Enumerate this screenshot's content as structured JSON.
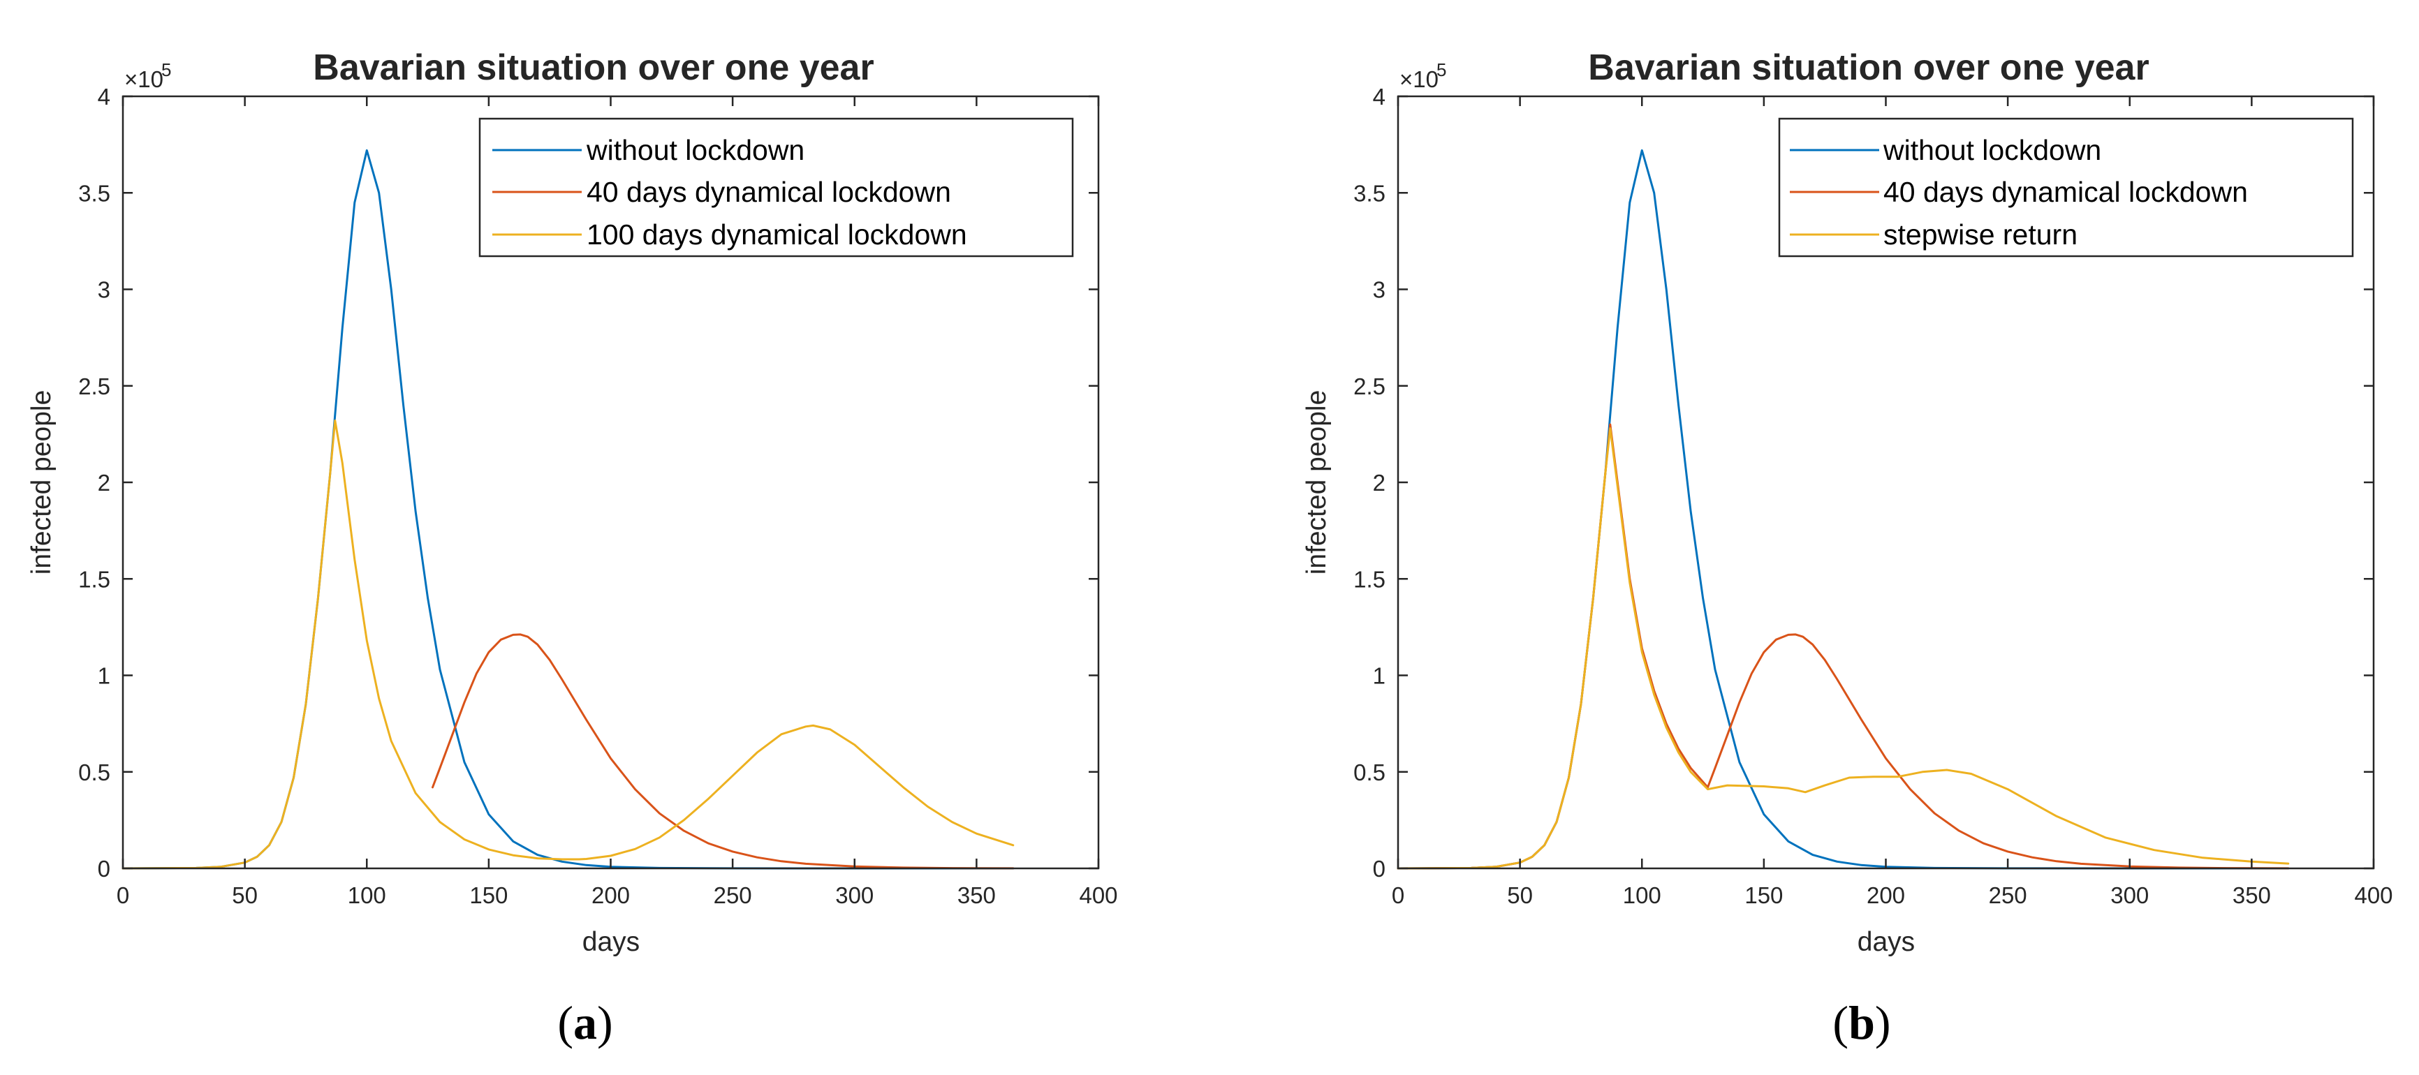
{
  "figure": {
    "exponent_label": "×10",
    "exponent_power": "5"
  },
  "colors": {
    "without": "#0072BD",
    "dyn40": "#D95319",
    "third": "#EDB120",
    "axis": "#262626"
  },
  "chart_data": [
    {
      "type": "line",
      "title": "Bavarian situation over one year",
      "xlabel": "days",
      "ylabel": "infected people",
      "xlim": [
        0,
        400
      ],
      "ylim": [
        0,
        400000
      ],
      "xticks": [
        0,
        50,
        100,
        150,
        200,
        250,
        300,
        350,
        400
      ],
      "yticks": [
        0,
        0.5,
        1,
        1.5,
        2,
        2.5,
        3,
        3.5,
        4
      ],
      "ytick_scale": 100000,
      "legend_position": "top-right",
      "caption_letter": "a",
      "series": [
        {
          "name": "without lockdown",
          "color": "#0072BD",
          "x": [
            0,
            30,
            40,
            50,
            55,
            60,
            65,
            70,
            75,
            80,
            85,
            87,
            90,
            95,
            100,
            105,
            110,
            115,
            120,
            125,
            130,
            140,
            150,
            160,
            170,
            180,
            190,
            200,
            220,
            250,
            300,
            365
          ],
          "y": [
            0,
            200,
            800,
            3000,
            6000,
            12000,
            24000,
            47000,
            85000,
            140000,
            205000,
            235000,
            280000,
            345000,
            372000,
            350000,
            300000,
            240000,
            185000,
            140000,
            103000,
            55000,
            28000,
            14000,
            7000,
            3500,
            1700,
            800,
            200,
            50,
            0,
            0
          ]
        },
        {
          "name": "40 days dynamical lockdown",
          "color": "#D95319",
          "x": [
            127,
            130,
            135,
            140,
            145,
            150,
            155,
            160,
            163,
            166,
            170,
            175,
            180,
            190,
            200,
            210,
            220,
            230,
            240,
            250,
            260,
            270,
            280,
            300,
            320,
            340,
            365
          ],
          "y": [
            42000,
            52000,
            69000,
            86000,
            101000,
            112000,
            118500,
            121000,
            121200,
            120000,
            116000,
            108000,
            98000,
            77000,
            57000,
            41000,
            28500,
            19500,
            13000,
            8700,
            5700,
            3700,
            2400,
            1000,
            400,
            150,
            50
          ]
        },
        {
          "name": "100 days dynamical lockdown",
          "color": "#EDB120",
          "x": [
            0,
            30,
            40,
            50,
            55,
            60,
            65,
            70,
            75,
            80,
            85,
            87,
            90,
            95,
            100,
            105,
            110,
            120,
            130,
            140,
            150,
            160,
            170,
            180,
            187,
            190,
            200,
            210,
            220,
            230,
            240,
            250,
            260,
            270,
            280,
            283,
            290,
            300,
            310,
            320,
            330,
            340,
            350,
            365
          ],
          "y": [
            0,
            200,
            800,
            3000,
            6000,
            12000,
            24000,
            47000,
            85000,
            140000,
            205000,
            232000,
            210000,
            160000,
            118000,
            88000,
            66000,
            39000,
            24000,
            15000,
            9800,
            6800,
            5200,
            4700,
            4700,
            4900,
            6500,
            10000,
            16000,
            25000,
            36000,
            48000,
            60000,
            69500,
            73500,
            74000,
            72000,
            64000,
            53000,
            42000,
            32000,
            24000,
            18000,
            12000
          ]
        }
      ]
    },
    {
      "type": "line",
      "title": "Bavarian situation over one year",
      "xlabel": "days",
      "ylabel": "infected people",
      "xlim": [
        0,
        400
      ],
      "ylim": [
        0,
        400000
      ],
      "xticks": [
        0,
        50,
        100,
        150,
        200,
        250,
        300,
        350,
        400
      ],
      "yticks": [
        0,
        0.5,
        1,
        1.5,
        2,
        2.5,
        3,
        3.5,
        4
      ],
      "ytick_scale": 100000,
      "legend_position": "top-right",
      "caption_letter": "b",
      "series": [
        {
          "name": "without lockdown",
          "color": "#0072BD",
          "x": [
            0,
            30,
            40,
            50,
            55,
            60,
            65,
            70,
            75,
            80,
            85,
            87,
            90,
            95,
            100,
            105,
            110,
            115,
            120,
            125,
            130,
            140,
            150,
            160,
            170,
            180,
            190,
            200,
            220,
            250,
            300,
            365
          ],
          "y": [
            0,
            200,
            800,
            3000,
            6000,
            12000,
            24000,
            47000,
            85000,
            140000,
            205000,
            235000,
            280000,
            345000,
            372000,
            350000,
            300000,
            240000,
            185000,
            140000,
            103000,
            55000,
            28000,
            14000,
            7000,
            3500,
            1700,
            800,
            200,
            50,
            0,
            0
          ]
        },
        {
          "name": "40 days dynamical lockdown",
          "color": "#D95319",
          "x": [
            0,
            30,
            40,
            50,
            55,
            60,
            65,
            70,
            75,
            80,
            85,
            87,
            90,
            95,
            100,
            105,
            110,
            115,
            120,
            127,
            130,
            135,
            140,
            145,
            150,
            155,
            160,
            163,
            166,
            170,
            175,
            180,
            190,
            200,
            210,
            220,
            230,
            240,
            250,
            260,
            270,
            280,
            300,
            320,
            340,
            365
          ],
          "y": [
            0,
            200,
            800,
            3000,
            6000,
            12000,
            24000,
            47000,
            85000,
            140000,
            205000,
            230000,
            200000,
            150000,
            114000,
            92000,
            75000,
            62000,
            52000,
            42000,
            52000,
            69000,
            86000,
            101000,
            112000,
            118500,
            121000,
            121200,
            120000,
            116000,
            108000,
            98000,
            77000,
            57000,
            41000,
            28500,
            19500,
            13000,
            8700,
            5700,
            3700,
            2400,
            1000,
            400,
            150,
            50
          ]
        },
        {
          "name": "stepwise return",
          "color": "#EDB120",
          "x": [
            0,
            30,
            40,
            50,
            55,
            60,
            65,
            70,
            75,
            80,
            85,
            87,
            90,
            95,
            100,
            105,
            110,
            115,
            120,
            127,
            135,
            150,
            160,
            167,
            175,
            185,
            195,
            205,
            215,
            225,
            235,
            250,
            270,
            290,
            310,
            330,
            350,
            365
          ],
          "y": [
            0,
            200,
            800,
            3000,
            6000,
            12000,
            24000,
            47000,
            85000,
            140000,
            205000,
            228000,
            198000,
            148000,
            112000,
            90000,
            73000,
            60000,
            50000,
            41000,
            43000,
            42500,
            41500,
            39500,
            43000,
            47000,
            47500,
            47500,
            50000,
            51000,
            49000,
            41000,
            27000,
            16000,
            9500,
            5500,
            3500,
            2500
          ]
        }
      ]
    }
  ]
}
